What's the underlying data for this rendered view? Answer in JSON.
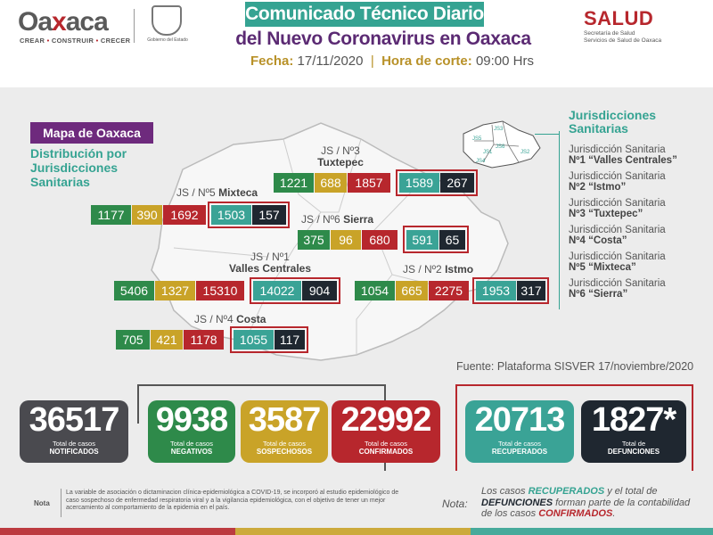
{
  "header": {
    "logo_word_a": "Oa",
    "logo_word_x": "x",
    "logo_word_b": "aca",
    "logo_tag_1": "CREAR",
    "logo_tag_2": "CONSTRUIR",
    "logo_tag_3": "CRECER",
    "gov_text": "Gobierno del Estado",
    "title_1": "Comunicado Técnico Diario",
    "title_2": "del Nuevo Coronavirus en Oaxaca",
    "fecha_label": "Fecha:",
    "fecha_value": "17/11/2020",
    "hora_label": "Hora de corte:",
    "hora_value": "09:00 Hrs",
    "salud": "SALUD",
    "salud_sub_1": "Secretaría de Salud",
    "salud_sub_2": "Servicios de Salud de Oaxaca"
  },
  "map": {
    "badge": "Mapa de Oaxaca",
    "subtitle_1": "Distribución por",
    "subtitle_2": "Jurisdicciones",
    "subtitle_3": "Sanitarias",
    "inset_labels": [
      "JS3",
      "JS5",
      "JS6",
      "JS1",
      "JS4",
      "JS2"
    ]
  },
  "jurisdictions": [
    {
      "label_1": "JS / Nº3",
      "label_2": "Tuxtepec",
      "notificados": "1221",
      "sospechosos": "688",
      "confirmados": "1857",
      "recuperados": "1589",
      "defunciones": "267"
    },
    {
      "label_1": "JS / Nº5",
      "label_2": "Mixteca",
      "notificados": "1177",
      "sospechosos": "390",
      "confirmados": "1692",
      "recuperados": "1503",
      "defunciones": "157"
    },
    {
      "label_1": "JS / Nº6",
      "label_2": "Sierra",
      "notificados": "375",
      "sospechosos": "96",
      "confirmados": "680",
      "recuperados": "591",
      "defunciones": "65"
    },
    {
      "label_1": "JS / Nº1",
      "label_2": "Valles Centrales",
      "notificados": "5406",
      "sospechosos": "1327",
      "confirmados": "15310",
      "recuperados": "14022",
      "defunciones": "904"
    },
    {
      "label_1": "JS / Nº2",
      "label_2": "Istmo",
      "notificados": "1054",
      "sospechosos": "665",
      "confirmados": "2275",
      "recuperados": "1953",
      "defunciones": "317"
    },
    {
      "label_1": "JS / Nº4",
      "label_2": "Costa",
      "notificados": "705",
      "sospechosos": "421",
      "confirmados": "1178",
      "recuperados": "1055",
      "defunciones": "117"
    }
  ],
  "legend": {
    "title_1": "Jurisdicciones",
    "title_2": "Sanitarias",
    "items": [
      {
        "prefix": "Jurisdicción Sanitaria",
        "name": "Nº1 “Valles Centrales”"
      },
      {
        "prefix": "Jurisdicción Sanitaria",
        "name": "Nº2 “Istmo”"
      },
      {
        "prefix": "Jurisdicción Sanitaria",
        "name": "Nº3 “Tuxtepec”"
      },
      {
        "prefix": "Jurisdicción Sanitaria",
        "name": "Nº4 “Costa”"
      },
      {
        "prefix": "Jurisdicción Sanitaria",
        "name": "Nº5 “Mixteca”"
      },
      {
        "prefix": "Jurisdicción Sanitaria",
        "name": "Nº6 “Sierra”"
      }
    ]
  },
  "fuente": "Fuente: Plataforma SISVER 17/noviembre/2020",
  "totals": [
    {
      "value": "36517",
      "label_1": "Total de casos",
      "label_2": "NOTIFICADOS",
      "color": "#4a4a4f"
    },
    {
      "value": "9938",
      "label_1": "Total de casos",
      "label_2": "NEGATIVOS",
      "color": "#2e8a4a"
    },
    {
      "value": "3587",
      "label_1": "Total de casos",
      "label_2": "SOSPECHOSOS",
      "color": "#c9a328"
    },
    {
      "value": "22992",
      "label_1": "Total de casos",
      "label_2": "CONFIRMADOS",
      "color": "#b7272d"
    },
    {
      "value": "20713",
      "label_1": "Total de casos",
      "label_2": "RECUPERADOS",
      "color": "#3aa396"
    },
    {
      "value": "1827*",
      "label_1": "Total de",
      "label_2": "DEFUNCIONES",
      "color": "#1f2730"
    }
  ],
  "nota_left": {
    "label": "Nota",
    "text": "La variable de asociación o dictaminacion clínica-epidemiológica a COVID-19, se incorporó al estudio epidemiológico de caso sospechoso de enfermedad respiratoria viral y a la vigilancia epidemiológica, con el objetivo de tener un mejor acercamiento al comportamiento de la epidemia en el país."
  },
  "nota_right": {
    "label": "Nota:",
    "t1": "Los casos ",
    "t2": "RECUPERADOS",
    "t3": " y el total de ",
    "t4": "DEFUNCIONES",
    "t5": " forman parte de la contabilidad de los casos ",
    "t6": "CONFIRMADOS",
    "t7": "."
  }
}
